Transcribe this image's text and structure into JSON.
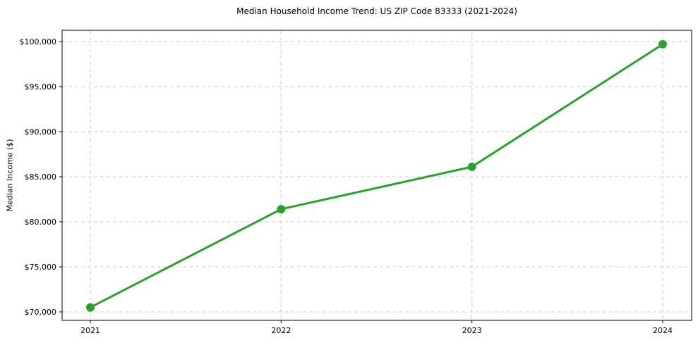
{
  "chart_data": {
    "type": "line",
    "title": "Median Household Income Trend: US ZIP Code 83333 (2021-2024)",
    "xlabel": "",
    "ylabel": "Median Income ($)",
    "x": [
      2021,
      2022,
      2023,
      2024
    ],
    "series": [
      {
        "name": "Median Income",
        "values": [
          70500,
          81400,
          86100,
          99700
        ]
      }
    ],
    "ylim": [
      70000,
      100000
    ],
    "ytick_step": 5000,
    "ytick_labels": [
      "$70,000",
      "$75,000",
      "$80,000",
      "$85,000",
      "$90,000",
      "$95,000",
      "$100,000"
    ],
    "xtick_labels": [
      "2021",
      "2022",
      "2023",
      "2024"
    ],
    "grid": true,
    "grid_style": "dashed",
    "legend": "none",
    "colors": {
      "line": "#2ca02c",
      "marker": "#2ca02c",
      "grid": "#cccccc",
      "frame": "#000000",
      "text": "#000000",
      "background": "#ffffff"
    }
  }
}
